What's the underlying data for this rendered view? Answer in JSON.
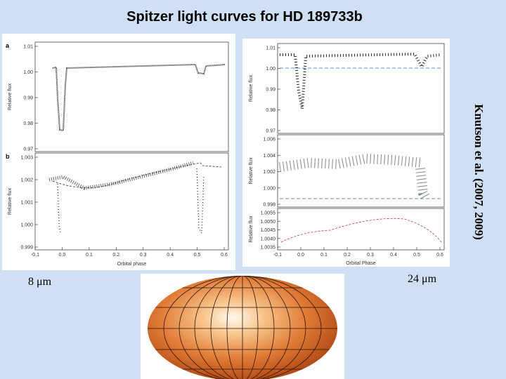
{
  "title": "Spitzer light curves for HD 189733b",
  "credit": "Knutson et al. (2007, 2009)",
  "labels": {
    "left": "8 μm",
    "right": "24 μm"
  },
  "figure_8um": {
    "panels": [
      {
        "letter": "a",
        "y_label": "Relative flux",
        "yticks": [
          "1.01",
          "1.00",
          "0.99",
          "0.98",
          "0.97"
        ]
      },
      {
        "letter": "b",
        "y_label": "Relative flux",
        "yticks": [
          "1.003",
          "1.002",
          "1.001",
          "1.000",
          "0.999"
        ]
      }
    ],
    "xticks": [
      "-0.1",
      "0.0",
      "0.1",
      "0.2",
      "0.3",
      "0.4",
      "0.5",
      "0.6"
    ],
    "x_label": "Orbital phase"
  },
  "figure_24um": {
    "panels": [
      {
        "y_label": "Relative flux",
        "yticks": [
          "1.01",
          "1.00",
          "0.99",
          "0.98",
          "0.97"
        ]
      },
      {
        "y_label": "Relative flux",
        "yticks": [
          "1.006",
          "1.004",
          "1.002",
          "1.000",
          "0.998"
        ]
      },
      {
        "y_label": "Relative flux",
        "yticks": [
          "1.0055",
          "1.0050",
          "1.0045",
          "1.0040",
          "1.0035"
        ]
      }
    ],
    "xticks": [
      "-0.1",
      "0.0",
      "0.1",
      "0.2",
      "0.3",
      "0.4",
      "0.5",
      "0.6"
    ],
    "x_label": "Orbital Phase"
  }
}
